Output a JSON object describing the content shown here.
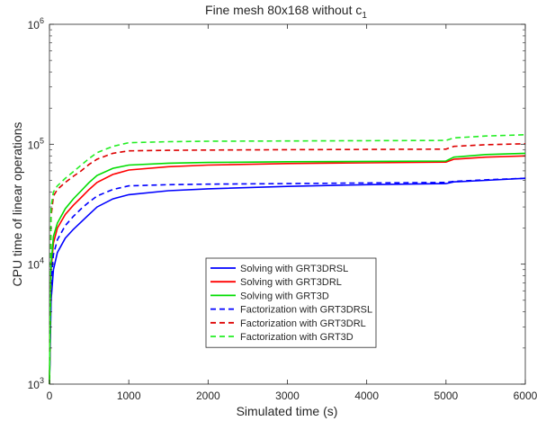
{
  "chart_data": {
    "type": "line",
    "title": "Fine mesh 80x168 without c",
    "title_subscript": "1",
    "xlabel": "Simulated time (s)",
    "ylabel": "CPU time of linear operations",
    "xlim": [
      0,
      6000
    ],
    "ylim": [
      1000,
      1000000
    ],
    "yscale": "log",
    "grid": false,
    "legend_position": "lower-center",
    "x_ticks": [
      {
        "value": 0,
        "label": "0"
      },
      {
        "value": 1000,
        "label": "1000"
      },
      {
        "value": 2000,
        "label": "2000"
      },
      {
        "value": 3000,
        "label": "3000"
      },
      {
        "value": 4000,
        "label": "4000"
      },
      {
        "value": 5000,
        "label": "5000"
      },
      {
        "value": 6000,
        "label": "6000"
      }
    ],
    "y_ticks": [
      {
        "value": 1000,
        "base": "10",
        "exp": "3"
      },
      {
        "value": 10000,
        "base": "10",
        "exp": "4"
      },
      {
        "value": 100000,
        "base": "10",
        "exp": "5"
      },
      {
        "value": 1000000,
        "base": "10",
        "exp": "6"
      }
    ],
    "series": [
      {
        "name": "Solving with GRT3DRSL",
        "color": "#0000ff",
        "dash": "solid",
        "x": [
          0,
          20,
          50,
          100,
          200,
          300,
          400,
          500,
          600,
          800,
          1000,
          1500,
          2000,
          3000,
          4000,
          5000,
          5100,
          5500,
          6000
        ],
        "y": [
          1000,
          5000,
          9000,
          12500,
          16500,
          19500,
          22500,
          26000,
          30000,
          35000,
          38000,
          41000,
          42500,
          44500,
          46000,
          47000,
          48500,
          50000,
          52000
        ]
      },
      {
        "name": "Solving with GRT3DRL",
        "color": "#ff0000",
        "dash": "solid",
        "x": [
          0,
          20,
          50,
          100,
          200,
          300,
          400,
          500,
          600,
          800,
          1000,
          1500,
          2000,
          3000,
          4000,
          5000,
          5100,
          5500,
          6000
        ],
        "y": [
          1000,
          9000,
          15000,
          20000,
          26000,
          31000,
          36000,
          42000,
          48000,
          56000,
          61000,
          65000,
          67000,
          69000,
          70000,
          71000,
          75000,
          78000,
          80000
        ]
      },
      {
        "name": "Solving with GRT3D",
        "color": "#00dd00",
        "dash": "solid",
        "x": [
          0,
          20,
          50,
          100,
          200,
          300,
          400,
          500,
          600,
          800,
          1000,
          1500,
          2000,
          3000,
          4000,
          5000,
          5100,
          5500,
          6000
        ],
        "y": [
          1000,
          10000,
          17000,
          22000,
          29000,
          35000,
          41000,
          48000,
          55000,
          63000,
          67000,
          69500,
          70500,
          71500,
          72000,
          72500,
          78000,
          82000,
          84000
        ]
      },
      {
        "name": "Factorization with GRT3DRSL",
        "color": "#0000ff",
        "dash": "dashed",
        "x": [
          0,
          20,
          50,
          100,
          200,
          300,
          400,
          500,
          600,
          800,
          1000,
          1500,
          2000,
          3000,
          4000,
          5000,
          5100,
          5500,
          6000
        ],
        "y": [
          1000,
          7000,
          12000,
          16000,
          21000,
          25000,
          29000,
          33000,
          37000,
          42000,
          45000,
          46000,
          46500,
          47000,
          47500,
          48000,
          49000,
          50500,
          52000
        ]
      },
      {
        "name": "Factorization with GRT3DRL",
        "color": "#dd0000",
        "dash": "dashed",
        "x": [
          0,
          20,
          50,
          100,
          200,
          300,
          400,
          500,
          600,
          800,
          1000,
          1500,
          2000,
          3000,
          4000,
          5000,
          5100,
          5500,
          6000
        ],
        "y": [
          1000,
          25000,
          37000,
          42000,
          48000,
          54000,
          60000,
          68000,
          75000,
          84000,
          88000,
          89000,
          89500,
          90000,
          90500,
          91000,
          96000,
          99000,
          101000
        ]
      },
      {
        "name": "Factorization with GRT3D",
        "color": "#22ee22",
        "dash": "dashed",
        "x": [
          0,
          20,
          50,
          100,
          200,
          300,
          400,
          500,
          600,
          800,
          1000,
          1500,
          2000,
          3000,
          4000,
          5000,
          5100,
          5500,
          6000
        ],
        "y": [
          1000,
          30000,
          40000,
          45000,
          52000,
          59000,
          67000,
          76000,
          85000,
          96000,
          103000,
          105000,
          106000,
          106500,
          107000,
          107500,
          113000,
          117000,
          120000
        ]
      }
    ]
  }
}
